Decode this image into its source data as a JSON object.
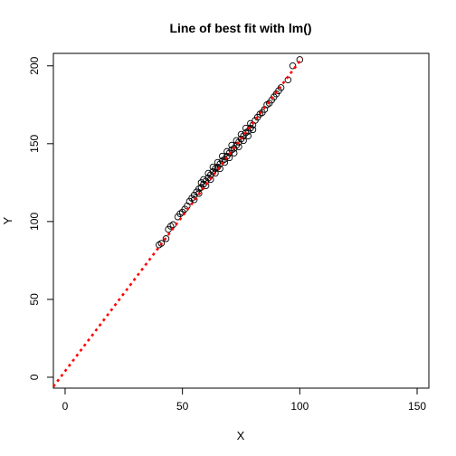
{
  "chart_data": {
    "type": "scatter",
    "title": "Line of best fit with lm()",
    "xlabel": "X",
    "ylabel": "Y",
    "xlim": [
      -5,
      155
    ],
    "ylim": [
      -7,
      208
    ],
    "xticks": [
      0,
      50,
      100,
      150
    ],
    "yticks": [
      0,
      50,
      100,
      150,
      200
    ],
    "grid": false,
    "series": [
      {
        "kind": "points",
        "marker": "open-circle",
        "color": "#000000",
        "x": [
          40,
          41,
          43,
          44,
          45,
          46,
          48,
          49,
          50,
          51,
          52,
          53,
          54,
          55,
          55,
          56,
          57,
          57,
          58,
          58,
          59,
          59,
          60,
          60,
          61,
          61,
          62,
          62,
          63,
          63,
          64,
          64,
          65,
          65,
          66,
          66,
          67,
          67,
          68,
          68,
          69,
          69,
          70,
          70,
          71,
          71,
          72,
          72,
          73,
          73,
          74,
          74,
          75,
          75,
          76,
          76,
          77,
          77,
          78,
          78,
          79,
          79,
          80,
          80,
          81,
          82,
          83,
          84,
          85,
          86,
          87,
          88,
          89,
          90,
          91,
          92,
          95,
          97,
          100
        ],
        "y": [
          85,
          86,
          89,
          95,
          97,
          98,
          103,
          105,
          106,
          108,
          110,
          113,
          115,
          117,
          114,
          119,
          121,
          118,
          122,
          125,
          124,
          127,
          126,
          123,
          128,
          131,
          130,
          127,
          132,
          135,
          134,
          131,
          135,
          138,
          137,
          134,
          139,
          142,
          140,
          138,
          142,
          145,
          144,
          141,
          146,
          149,
          147,
          144,
          149,
          152,
          151,
          148,
          153,
          156,
          155,
          152,
          157,
          160,
          158,
          155,
          160,
          163,
          162,
          159,
          165,
          167,
          169,
          170,
          172,
          175,
          176,
          178,
          180,
          182,
          184,
          186,
          191,
          200,
          204
        ]
      },
      {
        "kind": "line",
        "name": "",
        "color": "#ff0000",
        "dash": "dotted",
        "x": [
          -5,
          101
        ],
        "y": [
          -6,
          205
        ]
      }
    ]
  }
}
